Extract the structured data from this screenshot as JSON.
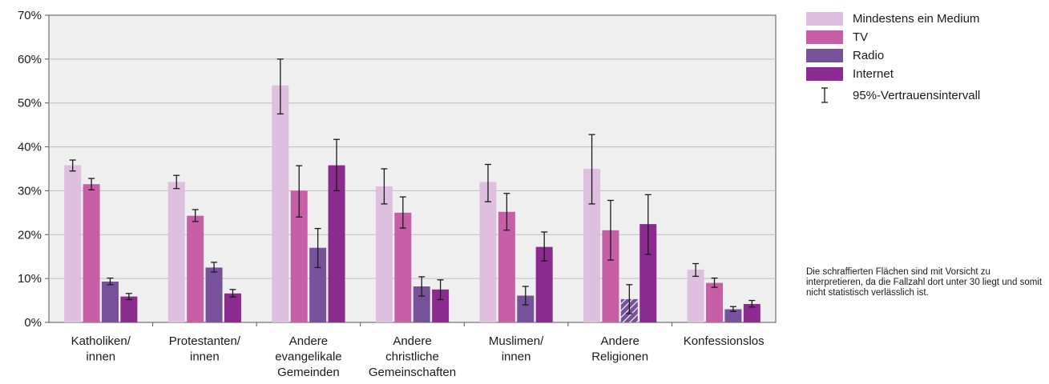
{
  "chart_data": {
    "type": "bar",
    "title": "",
    "xlabel": "",
    "ylabel": "",
    "ylim": [
      0,
      70
    ],
    "yticks": [
      "0%",
      "10%",
      "20%",
      "30%",
      "40%",
      "50%",
      "60%",
      "70%"
    ],
    "grid": true,
    "legend_position": "right",
    "categories": [
      [
        "Katholiken/",
        "innen"
      ],
      [
        "Protestanten/",
        "innen"
      ],
      [
        "Andere",
        "evangelikale",
        "Gemeinden"
      ],
      [
        "Andere",
        "christliche",
        "Gemeinschaften"
      ],
      [
        "Muslimen/",
        "innen"
      ],
      [
        "Andere",
        "Religionen"
      ],
      [
        "Konfessionslos"
      ]
    ],
    "series": [
      {
        "name": "Mindestens ein Medium",
        "color": "#dfbfdf",
        "values": [
          35.8,
          32.0,
          54.0,
          31.0,
          32.0,
          35.0,
          12.0
        ],
        "ci_low": [
          34.5,
          30.5,
          47.5,
          27.0,
          27.5,
          27.0,
          10.5
        ],
        "ci_high": [
          37.0,
          33.5,
          60.0,
          35.0,
          36.0,
          42.8,
          13.4
        ]
      },
      {
        "name": "TV",
        "color": "#c75fa6",
        "values": [
          31.5,
          24.3,
          30.0,
          25.0,
          25.2,
          21.0,
          9.0
        ],
        "ci_low": [
          30.2,
          23.0,
          24.0,
          21.5,
          21.0,
          14.2,
          8.0
        ],
        "ci_high": [
          32.8,
          25.7,
          35.7,
          28.6,
          29.4,
          27.8,
          10.1
        ]
      },
      {
        "name": "Radio",
        "color": "#77529b",
        "values": [
          9.3,
          12.5,
          17.0,
          8.2,
          6.1,
          5.3,
          3.0
        ],
        "ci_low": [
          8.6,
          11.5,
          12.5,
          6.0,
          4.0,
          2.0,
          2.5
        ],
        "ci_high": [
          10.1,
          13.7,
          21.4,
          10.4,
          8.2,
          8.6,
          3.6
        ]
      },
      {
        "name": "Internet",
        "color": "#8b2b8f",
        "values": [
          5.9,
          6.6,
          35.8,
          7.5,
          17.2,
          22.4,
          4.2
        ],
        "ci_low": [
          5.2,
          5.8,
          30.0,
          5.2,
          14.0,
          15.5,
          3.5
        ],
        "ci_high": [
          6.6,
          7.5,
          41.7,
          9.7,
          20.6,
          29.1,
          5.0
        ]
      }
    ],
    "hatched": [
      {
        "series": 2,
        "category": 5
      }
    ],
    "ci_legend_label": "95%-Vertrauensintervall",
    "note": "Die schraffierten Flächen sind mit Vorsicht zu interpretieren, da die Fallzahl dort unter 30 liegt und somit nicht statistisch verlässlich ist."
  }
}
